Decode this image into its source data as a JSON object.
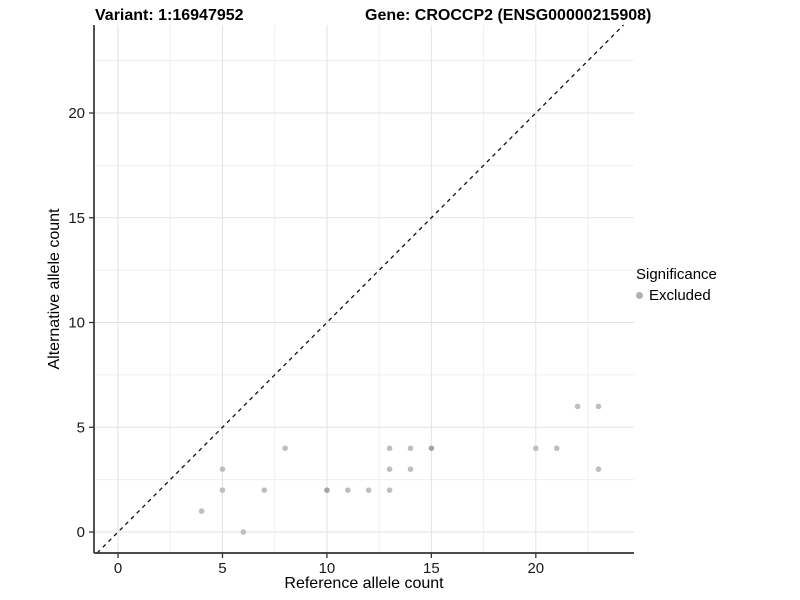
{
  "titles": {
    "left": "Variant: 1:16947952",
    "right": "Gene: CROCCP2 (ENSG00000215908)"
  },
  "legend": {
    "title": "Significance",
    "items": [
      {
        "label": "Excluded",
        "color": "#b0b0b0"
      }
    ]
  },
  "chart_data": {
    "type": "scatter",
    "title": "",
    "xlabel": "Reference allele count",
    "ylabel": "Alternative allele count",
    "xlim": [
      -1.15,
      24.7
    ],
    "ylim": [
      -1.0,
      24.2
    ],
    "x_ticks": [
      0,
      5,
      10,
      15,
      20
    ],
    "y_ticks": [
      0,
      5,
      10,
      15,
      20
    ],
    "x_minor_ticks": [
      2.5,
      7.5,
      12.5,
      17.5,
      22.5
    ],
    "y_minor_ticks": [
      2.5,
      7.5,
      12.5,
      17.5,
      22.5
    ],
    "grid": true,
    "grid_major_color": "#e2e2e2",
    "grid_minor_color": "#efefef",
    "axis_line_color": "#333333",
    "tick_label_color": "#1a1a1a",
    "legend_position": "right",
    "point_color": "#bebebe",
    "point_color_overlap": "#a4a4a4",
    "abline": {
      "slope": 1,
      "intercept": 0,
      "style": "dashed",
      "color": "#111111"
    },
    "series": [
      {
        "name": "Excluded",
        "points": [
          {
            "x": 4,
            "y": 1,
            "n": 1
          },
          {
            "x": 5,
            "y": 2,
            "n": 1
          },
          {
            "x": 5,
            "y": 3,
            "n": 1
          },
          {
            "x": 6,
            "y": 0,
            "n": 1
          },
          {
            "x": 7,
            "y": 2,
            "n": 1
          },
          {
            "x": 8,
            "y": 4,
            "n": 1
          },
          {
            "x": 10,
            "y": 2,
            "n": 2
          },
          {
            "x": 11,
            "y": 2,
            "n": 1
          },
          {
            "x": 12,
            "y": 2,
            "n": 1
          },
          {
            "x": 13,
            "y": 2,
            "n": 1
          },
          {
            "x": 13,
            "y": 3,
            "n": 1
          },
          {
            "x": 13,
            "y": 4,
            "n": 1
          },
          {
            "x": 14,
            "y": 3,
            "n": 1
          },
          {
            "x": 14,
            "y": 4,
            "n": 1
          },
          {
            "x": 15,
            "y": 4,
            "n": 2
          },
          {
            "x": 20,
            "y": 4,
            "n": 1
          },
          {
            "x": 21,
            "y": 4,
            "n": 1
          },
          {
            "x": 22,
            "y": 6,
            "n": 1
          },
          {
            "x": 23,
            "y": 6,
            "n": 1
          },
          {
            "x": 23,
            "y": 3,
            "n": 1
          }
        ]
      }
    ]
  }
}
